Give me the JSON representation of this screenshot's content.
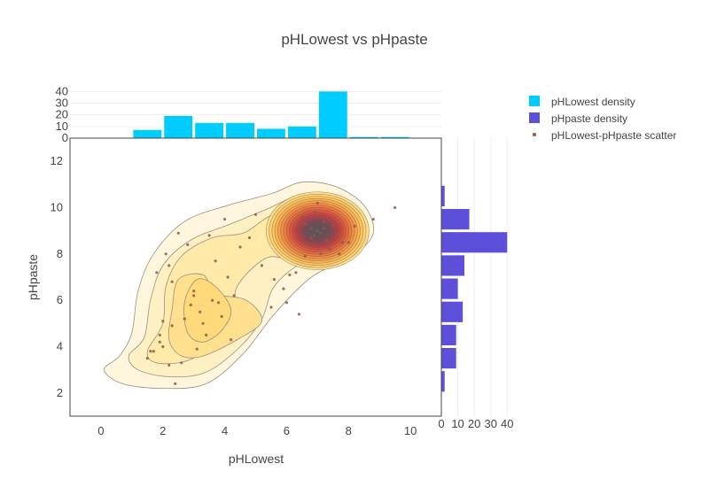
{
  "chart_data": {
    "type": "scatter",
    "title": "pHLowest vs pHpaste",
    "xlabel": "pHLowest",
    "ylabel": "pHpaste",
    "xlim": [
      -1,
      11
    ],
    "ylim": [
      1,
      13
    ],
    "x_ticks": [
      0,
      2,
      4,
      6,
      8,
      10
    ],
    "y_ticks": [
      2,
      4,
      6,
      8,
      10,
      12
    ],
    "legend_position": "top-right",
    "legend": [
      {
        "name": "pHLowest density",
        "kind": "bar",
        "color": "#00CCFF"
      },
      {
        "name": "pHpaste density",
        "kind": "bar",
        "color": "#5E4FDB"
      },
      {
        "name": "pHLowest-pHpaste scatter",
        "kind": "marker",
        "color": "#8B5A4A"
      }
    ],
    "top_histogram": {
      "series_name": "pHLowest density",
      "color": "#00CCFF",
      "bin_edges": [
        1,
        2,
        3,
        4,
        5,
        6,
        7,
        8,
        9,
        10
      ],
      "counts": [
        7,
        19,
        13,
        13,
        8,
        10,
        40,
        1,
        1
      ],
      "y_ticks": [
        0,
        10,
        20,
        30,
        40
      ],
      "ylim": [
        0,
        41
      ]
    },
    "right_histogram": {
      "series_name": "pHpaste density",
      "color": "#5E4FDB",
      "bin_edges": [
        2,
        3,
        4,
        5,
        6,
        7,
        8,
        9,
        10,
        11
      ],
      "counts": [
        2,
        9,
        9,
        13,
        10,
        14,
        40,
        17,
        2
      ],
      "x_ticks": [
        0,
        10,
        20,
        30,
        40
      ],
      "xlim": [
        0,
        42
      ]
    },
    "density_contours": {
      "colormap": "hot (yellow to red)",
      "peaks": [
        {
          "x": 7.0,
          "y": 9.0,
          "level": "high"
        },
        {
          "x": 3.3,
          "y": 5.8,
          "level": "moderate"
        }
      ]
    },
    "scatter": {
      "series_name": "pHLowest-pHpaste scatter",
      "color": "#8B5A4A",
      "x": [
        1.6,
        1.5,
        1.9,
        1.8,
        2.0,
        2.3,
        2.4,
        2.6,
        2.3,
        2.2,
        2.1,
        2.8,
        2.5,
        3.0,
        3.2,
        3.4,
        3.1,
        2.9,
        3.6,
        3.8,
        3.9,
        4.1,
        4.3,
        4.5,
        4.0,
        3.5,
        3.7,
        4.8,
        5.0,
        5.2,
        5.6,
        5.9,
        6.1,
        6.3,
        6.6,
        6.8,
        6.9,
        7.0,
        7.1,
        7.2,
        7.3,
        6.7,
        6.5,
        7.4,
        7.6,
        7.8,
        7.0,
        6.9,
        7.1,
        6.8,
        7.2,
        7.5,
        6.6,
        7.3,
        7.7,
        8.0,
        8.2,
        8.8,
        9.5,
        6.0,
        5.5,
        4.2,
        2.7,
        2.0,
        1.7,
        1.9,
        2.2,
        3.3,
        3.0,
        6.4
      ],
      "y": [
        3.8,
        3.5,
        4.2,
        7.2,
        5.1,
        4.9,
        2.4,
        3.3,
        6.8,
        7.5,
        8.0,
        8.4,
        8.9,
        6.2,
        5.5,
        4.5,
        3.9,
        5.8,
        6.0,
        5.9,
        5.3,
        7.0,
        6.2,
        8.3,
        9.5,
        8.8,
        7.7,
        8.7,
        9.7,
        7.5,
        6.9,
        6.5,
        7.1,
        7.2,
        9.3,
        9.1,
        8.8,
        9.0,
        8.9,
        9.1,
        8.6,
        8.4,
        9.6,
        8.2,
        8.8,
        8.5,
        10.2,
        9.8,
        8.0,
        8.7,
        9.4,
        9.2,
        7.9,
        8.3,
        8.0,
        8.5,
        9.2,
        9.5,
        10.0,
        5.9,
        5.7,
        4.3,
        5.2,
        4.0,
        3.8,
        4.5,
        3.2,
        5.0,
        6.4,
        5.4
      ]
    }
  }
}
